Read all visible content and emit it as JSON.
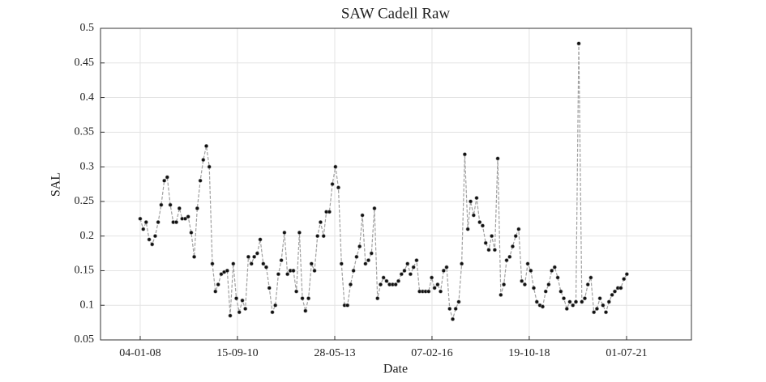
{
  "chart_data": {
    "type": "line",
    "title": "SAW Cadell Raw",
    "x_label": "Date",
    "y_label": "SAL",
    "line_color": "#a0a0a0",
    "marker_color": "#111111",
    "grid": true,
    "xlim": [
      "2006-11-28",
      "2023-04-19"
    ],
    "xticks": [
      {
        "value": "2008-01-04",
        "label": "04-01-08"
      },
      {
        "value": "2010-09-15",
        "label": "15-09-10"
      },
      {
        "value": "2013-05-28",
        "label": "28-05-13"
      },
      {
        "value": "2016-02-07",
        "label": "07-02-16"
      },
      {
        "value": "2018-10-19",
        "label": "19-10-18"
      },
      {
        "value": "2021-07-01",
        "label": "01-07-21"
      }
    ],
    "ylim": [
      0.05,
      0.5
    ],
    "yticks": [
      0.05,
      0.1,
      0.15,
      0.2,
      0.25,
      0.3,
      0.35,
      0.4,
      0.45,
      0.5
    ],
    "x": [
      "2008-01-04",
      "2008-02-04",
      "2008-03-04",
      "2008-04-04",
      "2008-05-04",
      "2008-06-04",
      "2008-07-04",
      "2008-08-04",
      "2008-09-04",
      "2008-10-04",
      "2008-11-04",
      "2008-12-04",
      "2009-01-04",
      "2009-02-04",
      "2009-03-04",
      "2009-04-04",
      "2009-05-04",
      "2009-06-04",
      "2009-07-04",
      "2009-08-04",
      "2009-09-04",
      "2009-10-04",
      "2009-11-04",
      "2009-12-04",
      "2010-01-04",
      "2010-02-04",
      "2010-03-04",
      "2010-04-04",
      "2010-05-04",
      "2010-06-04",
      "2010-07-04",
      "2010-08-04",
      "2010-09-04",
      "2010-10-04",
      "2010-11-04",
      "2010-12-04",
      "2011-01-04",
      "2011-02-04",
      "2011-03-04",
      "2011-04-04",
      "2011-05-04",
      "2011-06-04",
      "2011-07-04",
      "2011-08-04",
      "2011-09-04",
      "2011-10-04",
      "2011-11-04",
      "2011-12-04",
      "2012-01-04",
      "2012-02-04",
      "2012-03-04",
      "2012-04-04",
      "2012-05-04",
      "2012-06-04",
      "2012-07-04",
      "2012-08-04",
      "2012-09-04",
      "2012-10-04",
      "2012-11-04",
      "2012-12-04",
      "2013-01-04",
      "2013-02-04",
      "2013-03-04",
      "2013-04-04",
      "2013-05-04",
      "2013-06-04",
      "2013-07-04",
      "2013-08-04",
      "2013-09-04",
      "2013-10-04",
      "2013-11-04",
      "2013-12-04",
      "2014-01-04",
      "2014-02-04",
      "2014-03-04",
      "2014-04-04",
      "2014-05-04",
      "2014-06-04",
      "2014-07-04",
      "2014-08-04",
      "2014-09-04",
      "2014-10-04",
      "2014-11-04",
      "2014-12-04",
      "2015-01-04",
      "2015-02-04",
      "2015-03-04",
      "2015-04-04",
      "2015-05-04",
      "2015-06-04",
      "2015-07-04",
      "2015-08-04",
      "2015-09-04",
      "2015-10-04",
      "2015-11-04",
      "2015-12-04",
      "2016-01-04",
      "2016-02-04",
      "2016-03-04",
      "2016-04-04",
      "2016-05-04",
      "2016-06-04",
      "2016-07-04",
      "2016-08-04",
      "2016-09-04",
      "2016-10-04",
      "2016-11-04",
      "2016-12-04",
      "2017-01-04",
      "2017-02-04",
      "2017-03-04",
      "2017-04-04",
      "2017-05-04",
      "2017-06-04",
      "2017-07-04",
      "2017-08-04",
      "2017-09-04",
      "2017-10-04",
      "2017-11-04",
      "2017-12-04",
      "2018-01-04",
      "2018-02-04",
      "2018-03-04",
      "2018-04-04",
      "2018-05-04",
      "2018-06-04",
      "2018-07-04",
      "2018-08-04",
      "2018-09-04",
      "2018-10-04",
      "2018-11-04",
      "2018-12-04",
      "2019-01-04",
      "2019-02-04",
      "2019-03-04",
      "2019-04-04",
      "2019-05-04",
      "2019-06-04",
      "2019-07-04",
      "2019-08-04",
      "2019-09-04",
      "2019-10-04",
      "2019-11-04",
      "2019-12-04",
      "2020-01-04",
      "2020-02-04",
      "2020-03-04",
      "2020-04-04",
      "2020-05-04",
      "2020-06-04",
      "2020-07-04",
      "2020-08-04",
      "2020-09-04",
      "2020-10-04",
      "2020-11-04",
      "2020-12-04",
      "2021-01-04",
      "2021-02-04",
      "2021-03-04",
      "2021-04-04",
      "2021-05-04",
      "2021-06-04",
      "2021-07-04"
    ],
    "values": [
      0.225,
      0.21,
      0.22,
      0.195,
      0.188,
      0.2,
      0.22,
      0.245,
      0.28,
      0.285,
      0.245,
      0.22,
      0.22,
      0.24,
      0.225,
      0.225,
      0.228,
      0.205,
      0.17,
      0.24,
      0.28,
      0.31,
      0.33,
      0.3,
      0.16,
      0.12,
      0.13,
      0.145,
      0.148,
      0.15,
      0.085,
      0.16,
      0.11,
      0.09,
      0.107,
      0.095,
      0.17,
      0.16,
      0.17,
      0.175,
      0.195,
      0.16,
      0.155,
      0.125,
      0.09,
      0.1,
      0.145,
      0.165,
      0.205,
      0.145,
      0.15,
      0.15,
      0.12,
      0.205,
      0.11,
      0.092,
      0.11,
      0.16,
      0.15,
      0.2,
      0.22,
      0.2,
      0.235,
      0.235,
      0.275,
      0.3,
      0.27,
      0.16,
      0.1,
      0.1,
      0.13,
      0.15,
      0.17,
      0.185,
      0.23,
      0.16,
      0.165,
      0.175,
      0.24,
      0.11,
      0.13,
      0.14,
      0.135,
      0.13,
      0.13,
      0.13,
      0.135,
      0.145,
      0.15,
      0.16,
      0.145,
      0.155,
      0.165,
      0.12,
      0.12,
      0.12,
      0.12,
      0.14,
      0.125,
      0.13,
      0.12,
      0.15,
      0.155,
      0.095,
      0.08,
      0.095,
      0.105,
      0.16,
      0.318,
      0.21,
      0.25,
      0.23,
      0.255,
      0.22,
      0.215,
      0.19,
      0.18,
      0.2,
      0.18,
      0.312,
      0.115,
      0.13,
      0.165,
      0.17,
      0.185,
      0.2,
      0.21,
      0.135,
      0.13,
      0.16,
      0.15,
      0.125,
      0.105,
      0.1,
      0.098,
      0.12,
      0.13,
      0.15,
      0.155,
      0.14,
      0.12,
      0.11,
      0.095,
      0.105,
      0.1,
      0.105,
      0.478,
      0.105,
      0.11,
      0.13,
      0.14,
      0.09,
      0.095,
      0.11,
      0.1,
      0.09,
      0.105,
      0.115,
      0.12,
      0.125,
      0.125,
      0.138,
      0.145
    ]
  }
}
